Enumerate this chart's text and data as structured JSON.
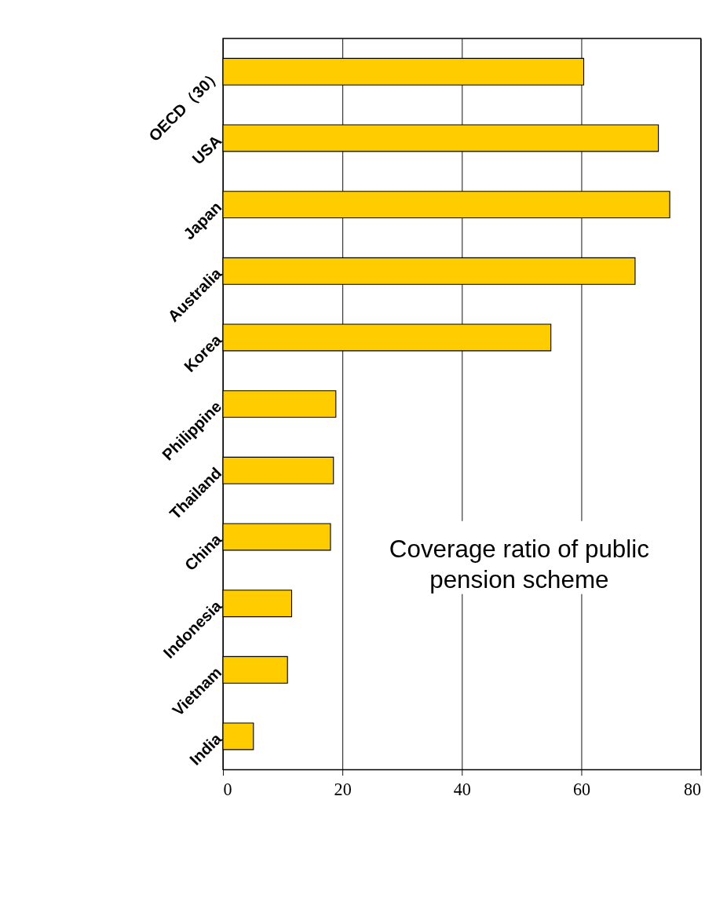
{
  "chart_data": {
    "type": "bar",
    "orientation": "horizontal",
    "categories": [
      "OECD（30）",
      "USA",
      "Japan",
      "Australia",
      "Korea",
      "Philippine",
      "Thailand",
      "China",
      "Indonesia",
      "Vietnam",
      "India"
    ],
    "values": [
      60.4,
      72.9,
      74.8,
      69.0,
      54.9,
      18.9,
      18.5,
      18.0,
      11.5,
      10.8,
      5.1
    ],
    "color": "#ffcc00",
    "xlim": [
      0,
      80
    ],
    "xticks": [
      0,
      20,
      40,
      60,
      80
    ],
    "grid": "x",
    "annotations": [
      "Coverage ratio of public\npension scheme"
    ]
  }
}
